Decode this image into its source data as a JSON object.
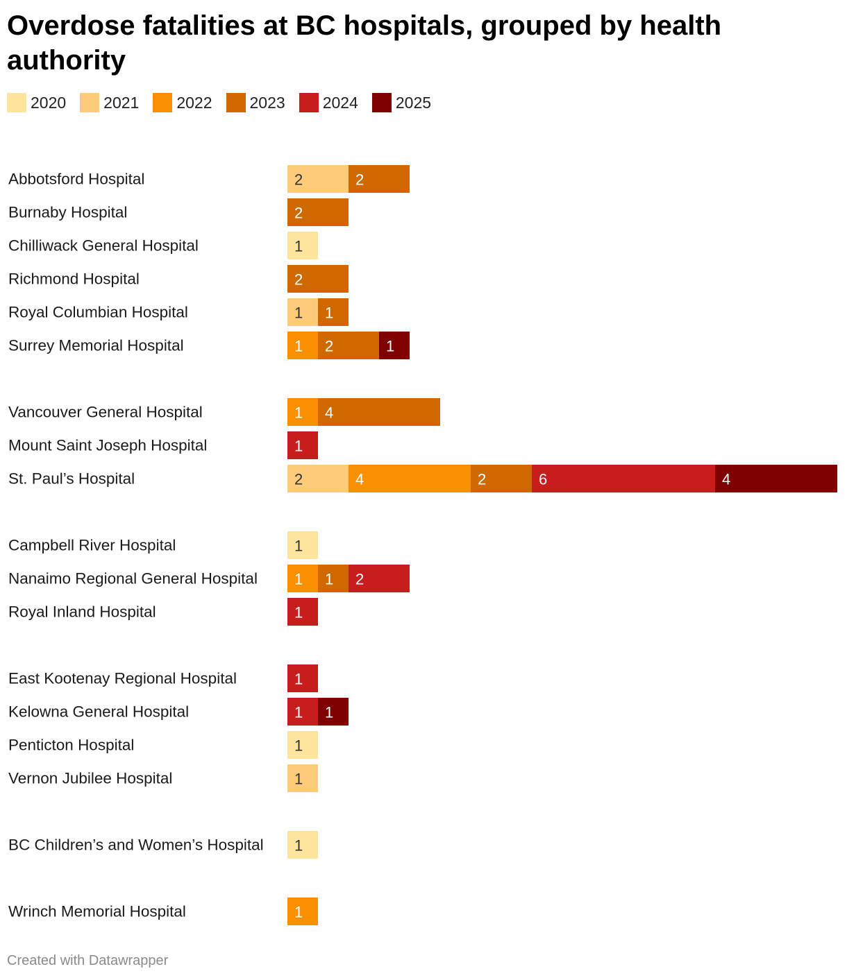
{
  "title": "Overdose fatalities at BC hospitals, grouped by health authority",
  "footer": "Created with Datawrapper",
  "chart_data": {
    "type": "bar",
    "orientation": "horizontal",
    "stacked": true,
    "grid": false,
    "legend_position": "top-left",
    "series": [
      {
        "name": "2020",
        "color": "#ffe49e"
      },
      {
        "name": "2021",
        "color": "#fecb7b"
      },
      {
        "name": "2022",
        "color": "#fa8f00"
      },
      {
        "name": "2023",
        "color": "#d06800"
      },
      {
        "name": "2024",
        "color": "#c81d1d"
      },
      {
        "name": "2025",
        "color": "#7f0000"
      }
    ],
    "groups": [
      {
        "rows": [
          {
            "label": "Abbotsford Hospital",
            "values": [
              0,
              2,
              0,
              2,
              0,
              0
            ]
          },
          {
            "label": "Burnaby Hospital",
            "values": [
              0,
              0,
              0,
              2,
              0,
              0
            ]
          },
          {
            "label": "Chilliwack General Hospital",
            "values": [
              1,
              0,
              0,
              0,
              0,
              0
            ]
          },
          {
            "label": "Richmond Hospital",
            "values": [
              0,
              0,
              0,
              2,
              0,
              0
            ]
          },
          {
            "label": "Royal Columbian Hospital",
            "values": [
              0,
              1,
              0,
              1,
              0,
              0
            ]
          },
          {
            "label": "Surrey Memorial Hospital",
            "values": [
              0,
              0,
              1,
              2,
              0,
              1
            ]
          }
        ]
      },
      {
        "rows": [
          {
            "label": "Vancouver General Hospital",
            "values": [
              0,
              0,
              1,
              4,
              0,
              0
            ]
          },
          {
            "label": "Mount Saint Joseph Hospital",
            "values": [
              0,
              0,
              0,
              0,
              1,
              0
            ]
          },
          {
            "label": "St. Paul’s Hospital",
            "values": [
              0,
              2,
              4,
              2,
              6,
              4
            ]
          }
        ]
      },
      {
        "rows": [
          {
            "label": "Campbell River Hospital",
            "values": [
              1,
              0,
              0,
              0,
              0,
              0
            ]
          },
          {
            "label": "Nanaimo Regional General Hospital",
            "values": [
              0,
              0,
              1,
              1,
              2,
              0
            ]
          },
          {
            "label": "Royal Inland Hospital",
            "values": [
              0,
              0,
              0,
              0,
              1,
              0
            ]
          }
        ]
      },
      {
        "rows": [
          {
            "label": "East Kootenay Regional Hospital",
            "values": [
              0,
              0,
              0,
              0,
              1,
              0
            ]
          },
          {
            "label": "Kelowna General Hospital",
            "values": [
              0,
              0,
              0,
              0,
              1,
              1
            ]
          },
          {
            "label": "Penticton Hospital",
            "values": [
              1,
              0,
              0,
              0,
              0,
              0
            ]
          },
          {
            "label": "Vernon Jubilee Hospital",
            "values": [
              0,
              1,
              0,
              0,
              0,
              0
            ]
          }
        ]
      },
      {
        "rows": [
          {
            "label": "BC Children’s and Women’s Hospital",
            "values": [
              1,
              0,
              0,
              0,
              0,
              0
            ]
          }
        ]
      },
      {
        "rows": [
          {
            "label": "Wrinch Memorial Hospital",
            "values": [
              0,
              0,
              1,
              0,
              0,
              0
            ]
          }
        ]
      }
    ]
  }
}
